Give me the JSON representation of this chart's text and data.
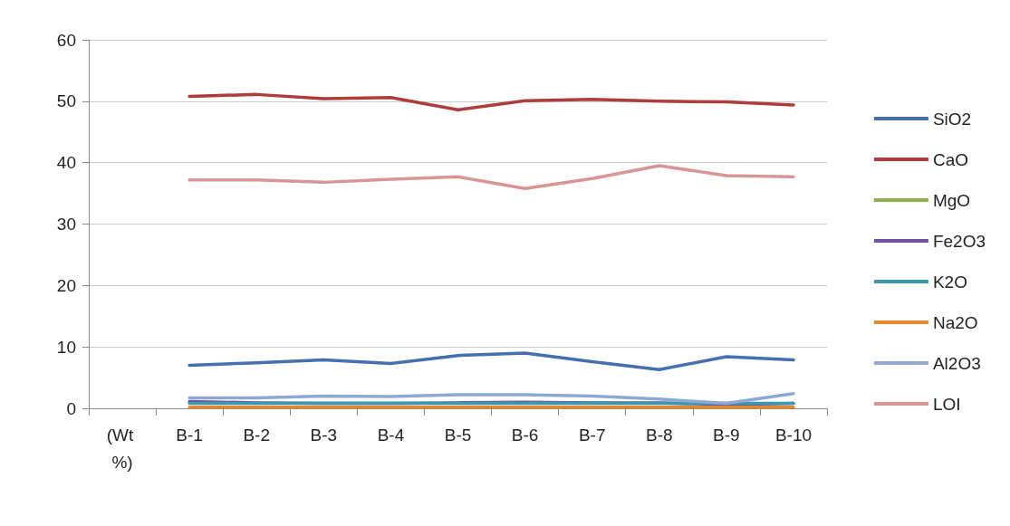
{
  "chart_data": {
    "type": "line",
    "categories": [
      "(Wt %)",
      "B-1",
      "B-2",
      "B-3",
      "B-4",
      "B-5",
      "B-6",
      "B-7",
      "B-8",
      "B-9",
      "B-10"
    ],
    "series": [
      {
        "name": "SiO2",
        "color": "#4470b0",
        "values": [
          null,
          7.0,
          7.4,
          7.9,
          7.3,
          8.6,
          9.0,
          7.6,
          6.3,
          8.4,
          7.9
        ]
      },
      {
        "name": "CaO",
        "color": "#b03c3a",
        "values": [
          null,
          50.8,
          51.1,
          50.4,
          50.6,
          48.6,
          50.1,
          50.3,
          50.0,
          49.9,
          49.4
        ]
      },
      {
        "name": "MgO",
        "color": "#8cb24a",
        "values": [
          null,
          null,
          null,
          null,
          null,
          null,
          null,
          null,
          null,
          null,
          null
        ]
      },
      {
        "name": "Fe2O3",
        "color": "#7052a0",
        "values": [
          null,
          1.1,
          0.9,
          0.8,
          0.8,
          0.9,
          1.0,
          0.9,
          0.9,
          0.6,
          0.8
        ]
      },
      {
        "name": "K2O",
        "color": "#3898b0",
        "values": [
          null,
          0.8,
          0.8,
          0.8,
          0.8,
          0.8,
          0.8,
          0.8,
          0.8,
          0.8,
          0.8
        ]
      },
      {
        "name": "Na2O",
        "color": "#e8862e",
        "values": [
          null,
          0.2,
          0.2,
          0.2,
          0.2,
          0.2,
          0.2,
          0.2,
          0.2,
          0.2,
          0.2
        ]
      },
      {
        "name": "Al2O3",
        "color": "#8ea8d4",
        "values": [
          null,
          1.7,
          1.7,
          2.0,
          1.9,
          2.2,
          2.2,
          2.0,
          1.5,
          0.8,
          2.4
        ]
      },
      {
        "name": "LOI",
        "color": "#d89594",
        "values": [
          null,
          37.2,
          37.2,
          36.8,
          37.3,
          37.7,
          35.8,
          37.4,
          39.5,
          37.9,
          37.7
        ]
      }
    ],
    "ylim": [
      0,
      60
    ],
    "yticks": [
      0,
      10,
      20,
      30,
      40,
      50,
      60
    ],
    "grid": "y",
    "legend": "right",
    "marker": "none",
    "line_style": "solid"
  }
}
